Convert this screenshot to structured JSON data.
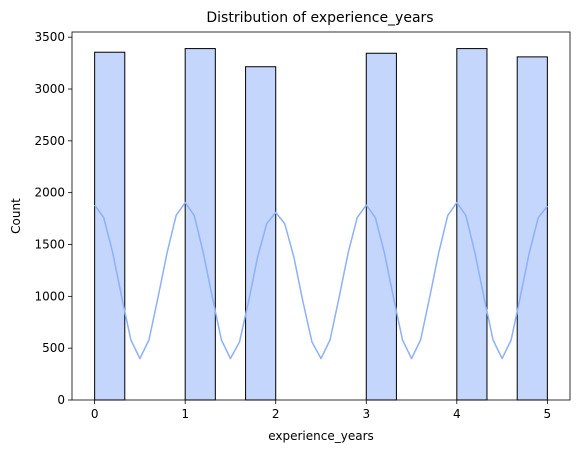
{
  "chart_data": {
    "type": "bar",
    "title": "Distribution of experience_years",
    "xlabel": "experience_years",
    "ylabel": "Count",
    "xlim": [
      -0.25,
      5.25
    ],
    "ylim": [
      0,
      3550
    ],
    "xticks": [
      0,
      1,
      2,
      3,
      4,
      5
    ],
    "yticks": [
      0,
      500,
      1000,
      1500,
      2000,
      2500,
      3000,
      3500
    ],
    "bins": [
      {
        "x0": 0.0,
        "x1": 0.333,
        "count": 3355
      },
      {
        "x0": 1.0,
        "x1": 1.333,
        "count": 3390
      },
      {
        "x0": 1.667,
        "x1": 2.0,
        "count": 3215
      },
      {
        "x0": 3.0,
        "x1": 3.333,
        "count": 3345
      },
      {
        "x0": 4.0,
        "x1": 4.333,
        "count": 3390
      },
      {
        "x0": 4.667,
        "x1": 5.0,
        "count": 3310
      }
    ],
    "kde": {
      "x": [
        0,
        0.1,
        0.2,
        0.3,
        0.4,
        0.5,
        0.6,
        0.7,
        0.8,
        0.9,
        1.0,
        1.1,
        1.2,
        1.3,
        1.4,
        1.5,
        1.6,
        1.7,
        1.8,
        1.9,
        2.0,
        2.1,
        2.2,
        2.3,
        2.4,
        2.5,
        2.6,
        2.7,
        2.8,
        2.9,
        3.0,
        3.1,
        3.2,
        3.3,
        3.4,
        3.5,
        3.6,
        3.7,
        3.8,
        3.9,
        4.0,
        4.1,
        4.2,
        4.3,
        4.4,
        4.5,
        4.6,
        4.7,
        4.8,
        4.9,
        5.0
      ],
      "y": [
        1880,
        1760,
        1420,
        990,
        580,
        400,
        580,
        990,
        1420,
        1780,
        1905,
        1780,
        1420,
        990,
        580,
        400,
        560,
        950,
        1380,
        1700,
        1810,
        1700,
        1380,
        950,
        560,
        400,
        580,
        990,
        1420,
        1760,
        1880,
        1760,
        1420,
        990,
        580,
        400,
        580,
        990,
        1420,
        1780,
        1905,
        1780,
        1420,
        990,
        580,
        400,
        580,
        990,
        1420,
        1760,
        1870
      ]
    },
    "colors": {
      "bar_fill": "#c5d6fd",
      "bar_edge": "#000000",
      "kde_line": "#8eb0f5"
    },
    "grid": false,
    "legend": "none"
  }
}
